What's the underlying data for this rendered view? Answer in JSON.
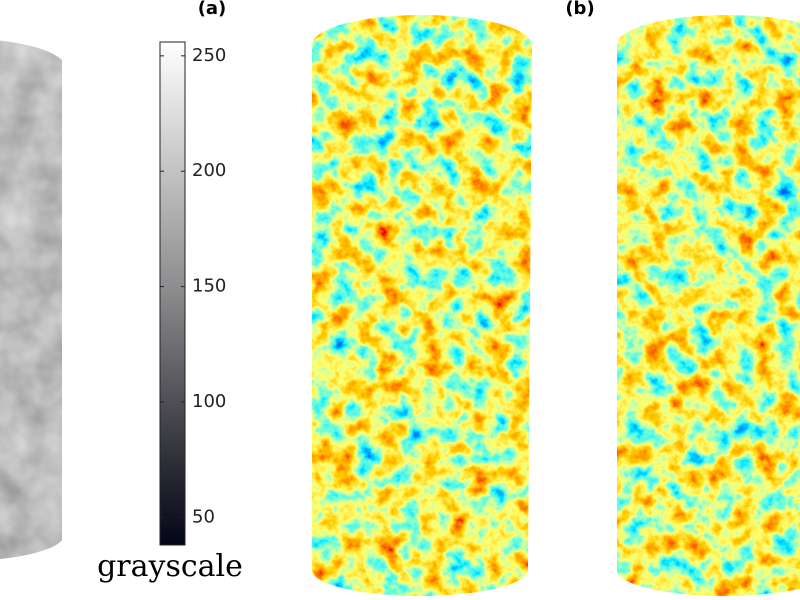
{
  "panels": [
    "(a)",
    "(b)"
  ],
  "colorbar": {
    "label": "grayscale",
    "lim": [
      38,
      256
    ],
    "ticks": [
      50,
      100,
      150,
      200,
      250
    ]
  }
}
